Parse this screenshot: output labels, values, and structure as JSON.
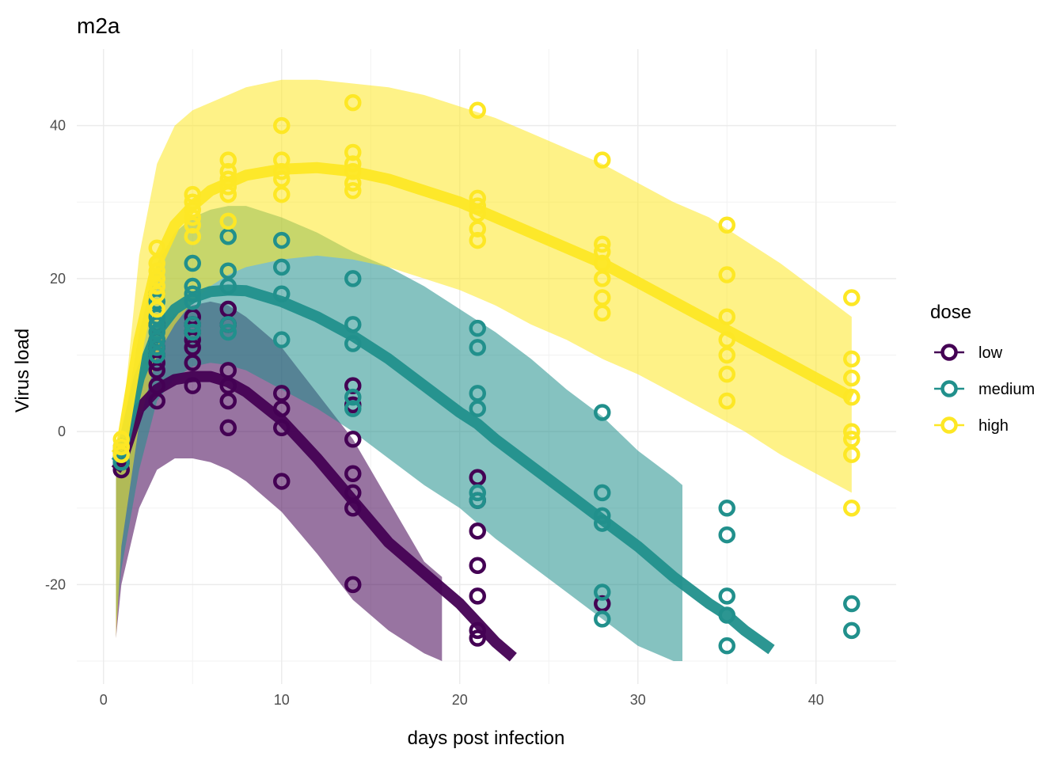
{
  "chart_data": {
    "type": "line",
    "title": "m2a",
    "xlabel": "days post infection",
    "ylabel": "Virus load",
    "xlim": [
      -1.5,
      44.5
    ],
    "ylim": [
      -33,
      50
    ],
    "x_ticks": [
      0,
      10,
      20,
      30,
      40
    ],
    "y_ticks": [
      -20,
      0,
      20,
      40
    ],
    "grid": true,
    "legend": {
      "title": "dose",
      "placement": "right"
    },
    "series": [
      {
        "name": "low",
        "color": "#440154",
        "curve": {
          "x": [
            0.7,
            1,
            2,
            3,
            4,
            5,
            6,
            7,
            8,
            10,
            12,
            14,
            16,
            18,
            19,
            20,
            21,
            22,
            23
          ],
          "y": [
            -5,
            -4,
            3,
            5.5,
            6.8,
            7.2,
            7.2,
            6.5,
            5.2,
            1.5,
            -3.5,
            -9,
            -14.5,
            -18.5,
            -20.5,
            -22.5,
            -25,
            -27.5,
            -29.5
          ]
        },
        "band": {
          "x": [
            0.7,
            1,
            2,
            3,
            4,
            5,
            6,
            7,
            8,
            10,
            12,
            14,
            16,
            18,
            19
          ],
          "upper": [
            -5,
            -2,
            8,
            13,
            15.5,
            16.5,
            17,
            16.5,
            15,
            11,
            5,
            -1,
            -9,
            -17,
            -19
          ],
          "lower": [
            -27,
            -20,
            -10,
            -5,
            -3.5,
            -3.5,
            -4,
            -5,
            -6.5,
            -10.5,
            -16,
            -22,
            -26,
            -29,
            -30
          ]
        },
        "points": [
          [
            1,
            -3
          ],
          [
            1,
            -4
          ],
          [
            1,
            -5
          ],
          [
            3,
            4
          ],
          [
            3,
            6
          ],
          [
            3,
            8
          ],
          [
            3,
            9
          ],
          [
            3,
            10
          ],
          [
            3,
            11
          ],
          [
            3,
            12
          ],
          [
            3,
            14
          ],
          [
            5,
            6
          ],
          [
            5,
            9
          ],
          [
            5,
            11
          ],
          [
            5,
            12
          ],
          [
            5,
            13
          ],
          [
            5,
            14
          ],
          [
            5,
            15
          ],
          [
            7,
            0.5
          ],
          [
            7,
            4
          ],
          [
            7,
            6
          ],
          [
            7,
            8
          ],
          [
            7,
            14
          ],
          [
            7,
            16
          ],
          [
            10,
            -6.5
          ],
          [
            10,
            0.5
          ],
          [
            10,
            3
          ],
          [
            10,
            5
          ],
          [
            14,
            -20
          ],
          [
            14,
            -10
          ],
          [
            14,
            -8
          ],
          [
            14,
            -5.5
          ],
          [
            14,
            -1
          ],
          [
            14,
            3.5
          ],
          [
            14,
            6
          ],
          [
            21,
            -27
          ],
          [
            21,
            -26
          ],
          [
            21,
            -21.5
          ],
          [
            21,
            -17.5
          ],
          [
            21,
            -13
          ],
          [
            21,
            -9
          ],
          [
            21,
            -6
          ],
          [
            28,
            -22.5
          ]
        ]
      },
      {
        "name": "medium",
        "color": "#21908C",
        "curve": {
          "x": [
            0.7,
            1,
            2,
            3,
            4,
            5,
            6,
            7,
            8,
            10,
            12,
            14,
            16,
            18,
            20,
            21,
            22,
            24,
            26,
            28,
            30,
            32,
            34,
            35,
            36,
            37.5
          ],
          "y": [
            -4,
            -3,
            7,
            13,
            16,
            17.5,
            18.3,
            18.5,
            18.4,
            17,
            15,
            12.5,
            9.5,
            6,
            2.5,
            1,
            -1,
            -4.5,
            -8,
            -11.5,
            -15,
            -19,
            -22.5,
            -24,
            -26,
            -28.5
          ]
        },
        "band": {
          "x": [
            0.7,
            1,
            2,
            3,
            4,
            5,
            6,
            7,
            8,
            10,
            12,
            14,
            16,
            18,
            20,
            22,
            24,
            26,
            28,
            30,
            32,
            32.5
          ],
          "upper": [
            -4,
            -1,
            13,
            22,
            26,
            28,
            29,
            29.5,
            29.5,
            28,
            26,
            23.5,
            21.5,
            19,
            16,
            13,
            9.5,
            5.5,
            2,
            -2.5,
            -6,
            -7
          ],
          "lower": [
            -25,
            -18,
            -5,
            4,
            7,
            8.5,
            9,
            8.7,
            8,
            5.5,
            3,
            0,
            -3.5,
            -7,
            -10,
            -14,
            -17.5,
            -21,
            -24.5,
            -28,
            -30,
            -30
          ]
        },
        "points": [
          [
            1,
            -2
          ],
          [
            1,
            -3
          ],
          [
            1,
            -4
          ],
          [
            3,
            10
          ],
          [
            3,
            11
          ],
          [
            3,
            12
          ],
          [
            3,
            13
          ],
          [
            3,
            14
          ],
          [
            3,
            15
          ],
          [
            3,
            17
          ],
          [
            3,
            18
          ],
          [
            5,
            13
          ],
          [
            5,
            14
          ],
          [
            5,
            17
          ],
          [
            5,
            18
          ],
          [
            5,
            19
          ],
          [
            5,
            22
          ],
          [
            7,
            13
          ],
          [
            7,
            14
          ],
          [
            7,
            19
          ],
          [
            7,
            21
          ],
          [
            7,
            25.5
          ],
          [
            10,
            12
          ],
          [
            10,
            18
          ],
          [
            10,
            21.5
          ],
          [
            10,
            25
          ],
          [
            14,
            3
          ],
          [
            14,
            4.5
          ],
          [
            14,
            11.5
          ],
          [
            14,
            14
          ],
          [
            14,
            20
          ],
          [
            21,
            -9
          ],
          [
            21,
            -8
          ],
          [
            21,
            3
          ],
          [
            21,
            5
          ],
          [
            21,
            11
          ],
          [
            21,
            13.5
          ],
          [
            28,
            -24.5
          ],
          [
            28,
            -21
          ],
          [
            28,
            -12
          ],
          [
            28,
            -11
          ],
          [
            28,
            -8
          ],
          [
            28,
            2.5
          ],
          [
            35,
            -28
          ],
          [
            35,
            -24
          ],
          [
            35,
            -21.5
          ],
          [
            35,
            -13.5
          ],
          [
            35,
            -10
          ],
          [
            42,
            -26
          ],
          [
            42,
            -22.5
          ]
        ]
      },
      {
        "name": "high",
        "color": "#FDE725",
        "curve": {
          "x": [
            0.7,
            1,
            2,
            3,
            4,
            5,
            6,
            7,
            8,
            10,
            12,
            14,
            16,
            18,
            20,
            22,
            24,
            26,
            28,
            30,
            32,
            34,
            36,
            38,
            40,
            42
          ],
          "y": [
            -3,
            -2,
            12,
            22,
            27,
            29.5,
            31.5,
            32.5,
            33.5,
            34.3,
            34.5,
            34,
            33,
            31.5,
            30,
            28,
            26,
            24,
            22,
            19.5,
            17,
            14.5,
            12,
            9.5,
            7,
            4.5
          ]
        },
        "band": {
          "x": [
            0.7,
            1,
            2,
            3,
            4,
            5,
            6,
            7,
            8,
            10,
            12,
            14,
            16,
            18,
            20,
            22,
            24,
            26,
            28,
            30,
            32,
            34,
            36,
            38,
            40,
            42
          ],
          "upper": [
            -3,
            0,
            23,
            35,
            40,
            42,
            43,
            44,
            45,
            46,
            46,
            45.5,
            45,
            44,
            42.5,
            41,
            39,
            37,
            35,
            32.5,
            30,
            28,
            25,
            22,
            18.5,
            15
          ],
          "lower": [
            -27,
            -15,
            1,
            10,
            14,
            17,
            19,
            20.5,
            21.5,
            22.5,
            23,
            22.5,
            21.5,
            20,
            18.5,
            16.5,
            14,
            12,
            9.5,
            7.5,
            5,
            2.5,
            0,
            -3,
            -5.5,
            -8
          ]
        },
        "points": [
          [
            1,
            -1
          ],
          [
            1,
            -2
          ],
          [
            1,
            -3
          ],
          [
            3,
            16
          ],
          [
            3,
            18
          ],
          [
            3,
            19
          ],
          [
            3,
            20
          ],
          [
            3,
            21
          ],
          [
            3,
            22
          ],
          [
            3,
            24
          ],
          [
            5,
            25.5
          ],
          [
            5,
            27
          ],
          [
            5,
            28
          ],
          [
            5,
            29
          ],
          [
            5,
            30
          ],
          [
            5,
            31
          ],
          [
            7,
            27.5
          ],
          [
            7,
            31
          ],
          [
            7,
            32
          ],
          [
            7,
            33
          ],
          [
            7,
            34
          ],
          [
            7,
            35.5
          ],
          [
            10,
            31
          ],
          [
            10,
            33
          ],
          [
            10,
            34
          ],
          [
            10,
            35.5
          ],
          [
            10,
            40
          ],
          [
            14,
            31.5
          ],
          [
            14,
            32.5
          ],
          [
            14,
            34
          ],
          [
            14,
            35
          ],
          [
            14,
            36.5
          ],
          [
            14,
            43
          ],
          [
            21,
            25
          ],
          [
            21,
            26.5
          ],
          [
            21,
            28.5
          ],
          [
            21,
            29.5
          ],
          [
            21,
            30.5
          ],
          [
            21,
            42
          ],
          [
            28,
            15.5
          ],
          [
            28,
            17.5
          ],
          [
            28,
            20
          ],
          [
            28,
            22
          ],
          [
            28,
            23.5
          ],
          [
            28,
            24.5
          ],
          [
            28,
            35.5
          ],
          [
            35,
            4
          ],
          [
            35,
            7.5
          ],
          [
            35,
            10
          ],
          [
            35,
            12
          ],
          [
            35,
            15
          ],
          [
            35,
            20.5
          ],
          [
            35,
            27
          ],
          [
            42,
            -10
          ],
          [
            42,
            -3
          ],
          [
            42,
            -1
          ],
          [
            42,
            0
          ],
          [
            42,
            4.5
          ],
          [
            42,
            7
          ],
          [
            42,
            9.5
          ],
          [
            42,
            17.5
          ]
        ]
      }
    ]
  }
}
